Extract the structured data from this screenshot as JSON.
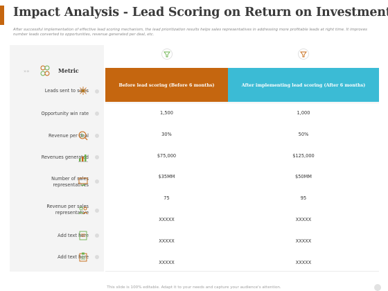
{
  "title": "Impact Analysis - Lead Scoring on Return on Investment",
  "subtitle": "After successful implementation of effective lead scoring mechanism, the lead prioritization results helps sales representatives in addressing more profitable leads at right time. It improves number leads converted to opportunities, revenue generated per deal, etc.",
  "colors": {
    "accent": "#c5660f",
    "left_header": "#c5660f",
    "right_header": "#3bbbd5",
    "panel": "#f4f4f4"
  },
  "metric_label": "Metric",
  "columns": {
    "left": "Before lead scoring (Before 6 months)",
    "right": "After implementing lead scoring (After 6 months)"
  },
  "rows": [
    {
      "label": "Leads sent to sales",
      "icon": "network-icon",
      "before": "1,500",
      "after": "1,000"
    },
    {
      "label": "Opportunity win rate",
      "icon": "",
      "before": "30%",
      "after": "50%"
    },
    {
      "label": "Revenue  per deal",
      "icon": "dollar-search-icon",
      "before": "$75,000",
      "after": "$125,000"
    },
    {
      "label": "Revenues  generated",
      "icon": "bar-chart-icon",
      "before": "$35MM",
      "after": "$50MM"
    },
    {
      "label": "Number of sales representatives",
      "icon": "monitor-icon",
      "before": "75",
      "after": "95"
    },
    {
      "label": "Revenue  per sales representative",
      "icon": "people-icon",
      "before": "XXXXX",
      "after": "XXXXX"
    },
    {
      "label": "Add text here",
      "icon": "document-icon",
      "before": "XXXXX",
      "after": "XXXXX"
    },
    {
      "label": "Add text here",
      "icon": "clipboard-icon",
      "before": "XXXXX",
      "after": "XXXXX"
    }
  ],
  "footer": "This slide is 100% editable. Adapt it to your needs and capture your audience's attention."
}
